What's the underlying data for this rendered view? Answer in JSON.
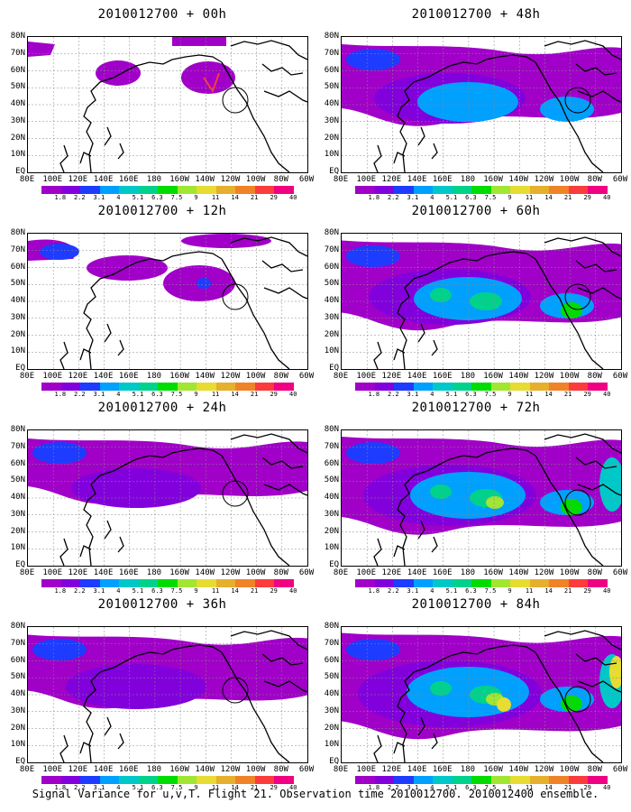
{
  "panels": [
    {
      "title": "2010012700 + 00h",
      "intensity": 0
    },
    {
      "title": "2010012700 + 12h",
      "intensity": 1
    },
    {
      "title": "2010012700 + 24h",
      "intensity": 2
    },
    {
      "title": "2010012700 + 36h",
      "intensity": 3
    },
    {
      "title": "2010012700 + 48h",
      "intensity": 4
    },
    {
      "title": "2010012700 + 60h",
      "intensity": 5
    },
    {
      "title": "2010012700 + 72h",
      "intensity": 6
    },
    {
      "title": "2010012700 + 84h",
      "intensity": 7
    }
  ],
  "lat_labels": [
    "80N",
    "70N",
    "60N",
    "50N",
    "40N",
    "30N",
    "20N",
    "10N",
    "EQ"
  ],
  "lon_labels": [
    "80E",
    "100E",
    "120E",
    "140E",
    "160E",
    "180",
    "160W",
    "140W",
    "120W",
    "100W",
    "80W",
    "60W"
  ],
  "colorbar": {
    "labels": [
      "1.8",
      "2.2",
      "3.1",
      "4",
      "5.1",
      "6.3",
      "7.5",
      "9",
      "11",
      "14",
      "21",
      "29",
      "40"
    ],
    "colors": [
      "#a000c8",
      "#8200dc",
      "#1e3cff",
      "#00a0ff",
      "#00c8c8",
      "#00d28c",
      "#00dc00",
      "#a0e632",
      "#e6dc32",
      "#e6af2d",
      "#f08228",
      "#fa3c3c",
      "#f00082"
    ]
  },
  "caption": "Signal Variance for u,v,T. Flight 21. Observation time 2010012700. 2010012400 ensemble."
}
